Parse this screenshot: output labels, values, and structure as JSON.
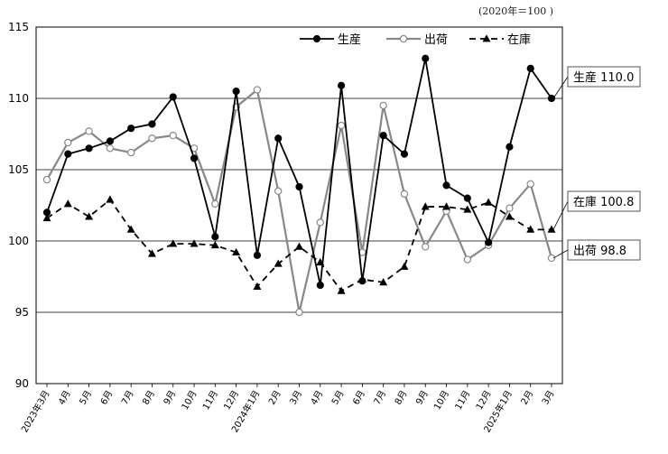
{
  "chart_data": {
    "type": "line",
    "unit_note": "(2020年＝100 )",
    "ylim": [
      90,
      115
    ],
    "yticks": [
      90,
      95,
      100,
      105,
      110,
      115
    ],
    "categories": [
      "2023年3月",
      "4月",
      "5月",
      "6月",
      "7月",
      "8月",
      "9月",
      "10月",
      "11月",
      "12月",
      "2024年1月",
      "2月",
      "3月",
      "4月",
      "5月",
      "6月",
      "7月",
      "8月",
      "9月",
      "10月",
      "11月",
      "12月",
      "2025年1月",
      "2月",
      "3月"
    ],
    "series": [
      {
        "name": "生産",
        "style": "solid",
        "marker": "circle-filled",
        "color": "#000000",
        "values": [
          102.0,
          106.1,
          106.5,
          107.0,
          107.9,
          108.2,
          110.1,
          105.8,
          100.3,
          110.5,
          99.0,
          107.2,
          103.8,
          96.9,
          110.9,
          97.2,
          107.4,
          106.1,
          112.8,
          103.9,
          103.0,
          99.9,
          106.6,
          112.1,
          110.0
        ]
      },
      {
        "name": "出荷",
        "style": "solid",
        "marker": "circle-open",
        "color": "#888888",
        "values": [
          104.3,
          106.9,
          107.7,
          106.5,
          106.2,
          107.2,
          107.4,
          106.5,
          102.6,
          109.4,
          110.6,
          103.5,
          95.0,
          101.3,
          108.1,
          99.2,
          109.5,
          103.3,
          99.6,
          102.1,
          98.7,
          99.7,
          102.3,
          104.0,
          98.8
        ]
      },
      {
        "name": "在庫",
        "style": "dashed",
        "marker": "triangle-filled",
        "color": "#000000",
        "values": [
          101.6,
          102.6,
          101.7,
          102.9,
          100.8,
          99.1,
          99.8,
          99.8,
          99.7,
          99.2,
          96.8,
          98.4,
          99.6,
          98.5,
          96.5,
          97.3,
          97.1,
          98.2,
          102.4,
          102.4,
          102.2,
          102.7,
          101.7,
          100.8,
          100.8
        ]
      }
    ],
    "callouts": [
      {
        "series": "生産",
        "label": "生産 110.0"
      },
      {
        "series": "在庫",
        "label": "在庫 100.8"
      },
      {
        "series": "出荷",
        "label": "出荷 98.8"
      }
    ],
    "legend": [
      "生産",
      "出荷",
      "在庫"
    ],
    "legend_position": "top-right"
  }
}
